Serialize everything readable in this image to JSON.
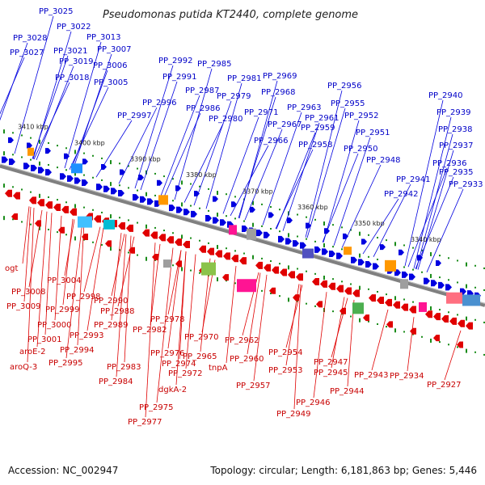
{
  "title": "Pseudomonas putida KT2440, complete genome",
  "footer": {
    "accession": "Accession: NC_002947",
    "topology": "Topology: circular; Length: 6,181,863 bp; Genes: 5,446"
  },
  "colors": {
    "forward_gene": "#0000e0",
    "reverse_gene": "#e00000",
    "forward_label": "#0000c8",
    "reverse_label": "#c80000",
    "backbone": "#808080",
    "tick": "#1a8c1a"
  },
  "kbp_labels": [
    "3410 kbp",
    "3400 kbp",
    "3390 kbp",
    "3380 kbp",
    "3370 kbp",
    "3360 kbp",
    "3350 kbp",
    "3340 kbp"
  ],
  "forward_labels": [
    "PP_3025",
    "PP_3022",
    "PP_3028",
    "PP_3013",
    "PP_3021",
    "PP_3007",
    "PP_3027",
    "PP_3019",
    "PP_3006",
    "PP_3018",
    "PP_3005",
    "PP_2992",
    "PP_2985",
    "PP_2991",
    "PP_2981",
    "PP_2987",
    "PP_2996",
    "PP_2979",
    "PP_2986",
    "PP_2997",
    "PP_2980",
    "PP_2969",
    "PP_2968",
    "PP_2956",
    "PP_2971",
    "PP_2963",
    "PP_2955",
    "PP_2967",
    "PP_2961",
    "PP_2952",
    "PP_2959",
    "PP_2966",
    "PP_2958",
    "PP_2951",
    "PP_2950",
    "PP_2948",
    "PP_2940",
    "PP_2939",
    "PP_2938",
    "PP_2937",
    "PP_2936",
    "PP_2935",
    "PP_2941",
    "PP_2933",
    "PP_2942"
  ],
  "reverse_labels": [
    "ogt",
    "PP_3004",
    "PP_3008",
    "PP_2998",
    "PP_3009",
    "PP_2999",
    "PP_2990",
    "PP_2988",
    "PP_3000",
    "PP_2989",
    "PP_2978",
    "PP_2993",
    "PP_3001",
    "PP_2982",
    "PP_2970",
    "PP_2962",
    "PP_2994",
    "aroE-2",
    "PP_2976",
    "PP_2995",
    "aroQ-3",
    "PP_2965",
    "PP_2960",
    "PP_2954",
    "PP_2974",
    "tnpA",
    "PP_2953",
    "PP_2947",
    "PP_2983",
    "PP_2972",
    "PP_2945",
    "PP_2943",
    "PP_2934",
    "PP_2984",
    "PP_2957",
    "PP_2927",
    "PP_2944",
    "dgkA-2",
    "PP_2946",
    "PP_2975",
    "PP_2949",
    "PP_2977"
  ]
}
